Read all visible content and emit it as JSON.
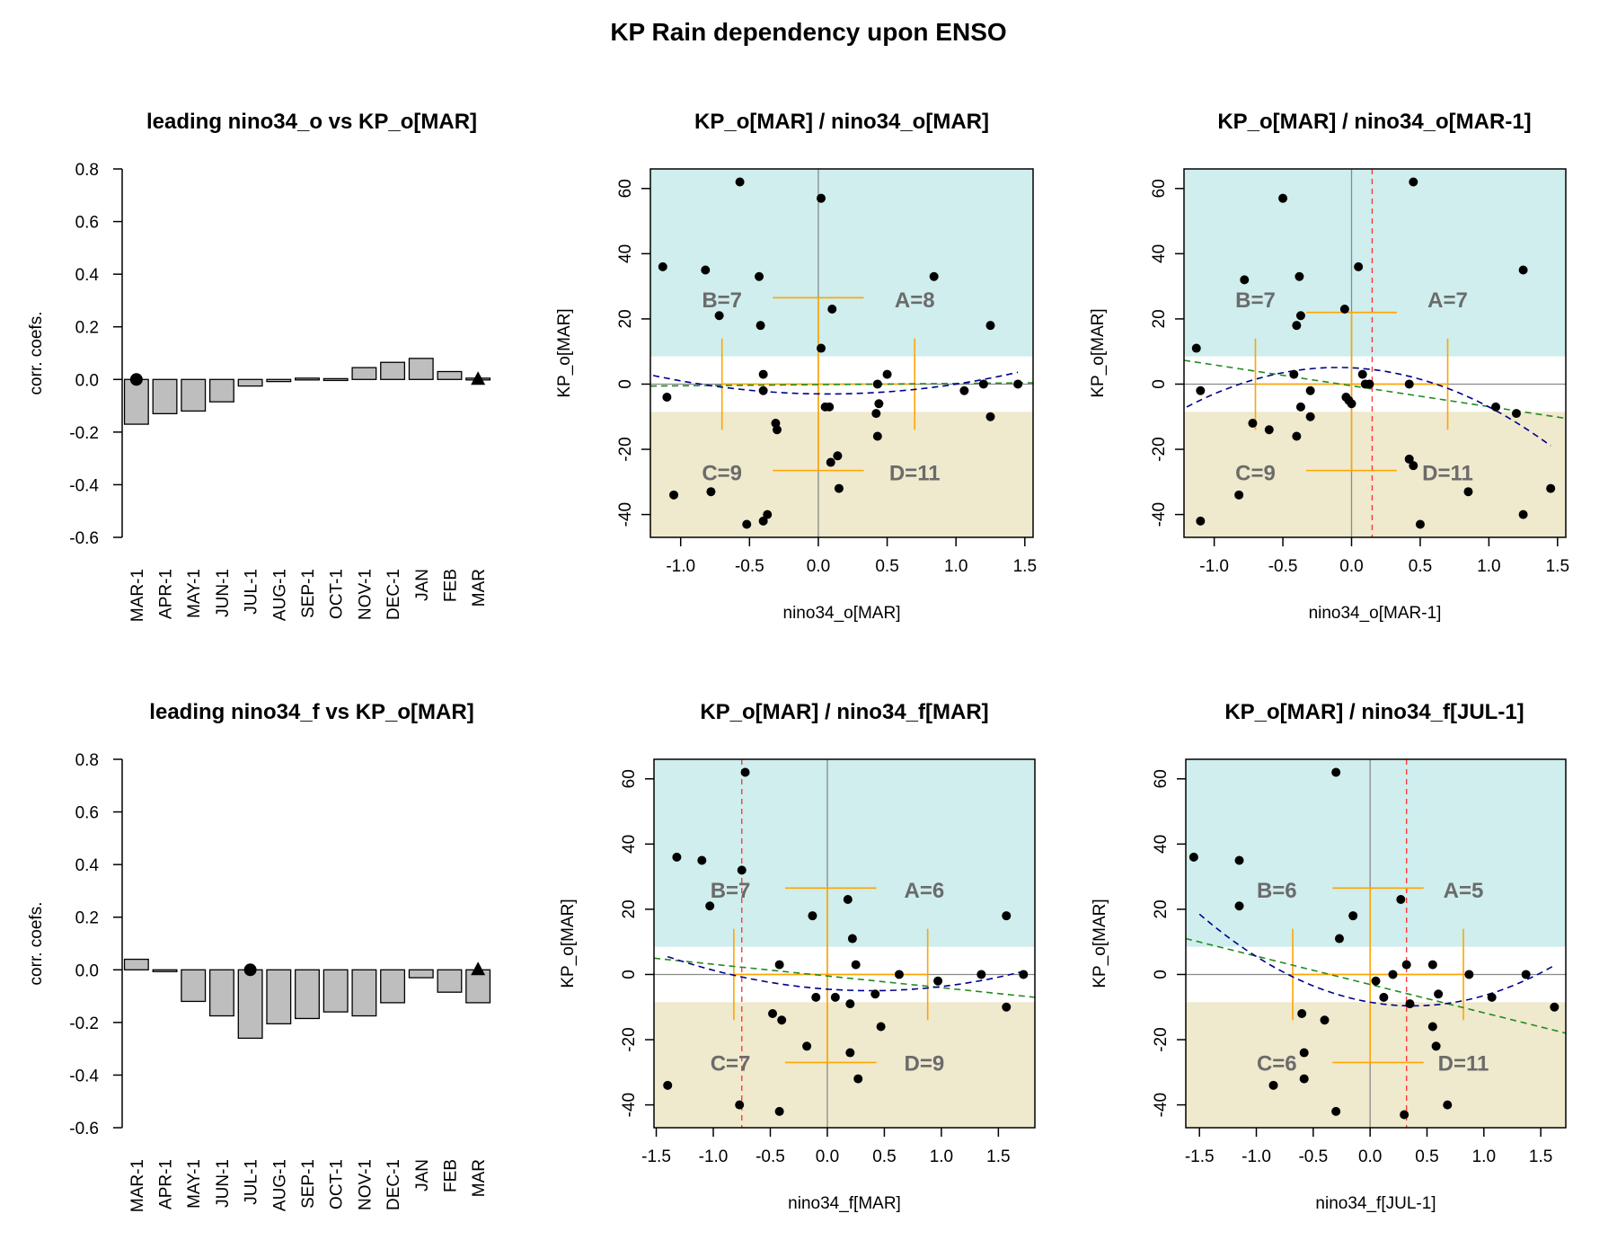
{
  "figure": {
    "title": "KP Rain dependency upon ENSO"
  },
  "colors": {
    "wet_band": "#cfeeed",
    "dry_band": "#efe9cd",
    "bar_fill": "#bebebe",
    "quadrant_lines": "#ffa500",
    "quadratic_fit": "#00008b",
    "linear_fit": "#228b22",
    "threshold_line": "#ff3030",
    "quadrant_text": "#6b6b6b"
  },
  "chart_data": [
    {
      "id": "bar1",
      "type": "bar",
      "title": "leading nino34_o vs KP_o[MAR]",
      "ylabel": "corr. coefs.",
      "xlabel": "",
      "ylim": [
        -0.6,
        0.8
      ],
      "yticks": [
        "-0.6",
        "-0.4",
        "-0.2",
        "0.0",
        "0.2",
        "0.4",
        "0.6",
        "0.8"
      ],
      "yticks_values": [
        -0.6,
        -0.4,
        -0.2,
        0.0,
        0.2,
        0.4,
        0.6,
        0.8
      ],
      "categories": [
        "MAR-1",
        "APR-1",
        "MAY-1",
        "JUN-1",
        "JUL-1",
        "AUG-1",
        "SEP-1",
        "OCT-1",
        "NOV-1",
        "DEC-1",
        "JAN",
        "FEB",
        "MAR"
      ],
      "values": [
        -0.17,
        -0.13,
        -0.12,
        -0.085,
        -0.025,
        -0.008,
        0.005,
        0.003,
        0.045,
        0.065,
        0.08,
        0.03,
        0.005
      ],
      "marker_circle_index": 0,
      "marker_triangle_index": 12
    },
    {
      "id": "sc1",
      "type": "scatter",
      "title": "KP_o[MAR] / nino34_o[MAR]",
      "xlabel": "nino34_o[MAR]",
      "ylabel": "KP_o[MAR]",
      "xlim": [
        -1.22,
        1.56
      ],
      "ylim": [
        -47,
        66
      ],
      "xticks": [
        "-1.0",
        "-0.5",
        "0.0",
        "0.5",
        "1.0",
        "1.5"
      ],
      "xticks_values": [
        -1,
        -0.5,
        0,
        0.5,
        1,
        1.5
      ],
      "yticks": [
        "-40",
        "-20",
        "0",
        "20",
        "40",
        "60"
      ],
      "yticks_values": [
        -40,
        -20,
        0,
        20,
        40,
        60
      ],
      "wet_threshold": 8.5,
      "dry_threshold": -8.5,
      "x_center": 0.0,
      "x_threshold": null,
      "quad_x": [
        -0.7,
        0.7
      ],
      "quad_y": [
        -14,
        14
      ],
      "quad_cross_x": [
        -0.33,
        0.33
      ],
      "quad_cross_y": [
        26.5,
        -26.5
      ],
      "quadrant_counts": {
        "A": "A=8",
        "B": "B=7",
        "C": "C=9",
        "D": "D=11"
      },
      "quad_label_x": {
        "A": 0.7,
        "B": -0.7,
        "C": -0.7,
        "D": 0.7
      },
      "quad_label_y": {
        "top": 26,
        "bottom": -27
      },
      "linear_fit": [
        [
          -1.22,
          -0.6
        ],
        [
          1.56,
          0.4
        ]
      ],
      "quadratic_fit": {
        "a": 3.5,
        "b": -0.5,
        "c": -3,
        "range": [
          -1.2,
          1.45
        ]
      },
      "points": [
        [
          -1.13,
          36
        ],
        [
          -1.1,
          -4
        ],
        [
          -1.05,
          -34
        ],
        [
          -0.82,
          35
        ],
        [
          -0.78,
          -33
        ],
        [
          -0.72,
          21
        ],
        [
          -0.57,
          62
        ],
        [
          -0.52,
          -43
        ],
        [
          -0.43,
          33
        ],
        [
          -0.42,
          18
        ],
        [
          -0.4,
          3
        ],
        [
          -0.4,
          -2
        ],
        [
          -0.4,
          -42
        ],
        [
          -0.37,
          -40
        ],
        [
          -0.31,
          -12
        ],
        [
          -0.3,
          -14
        ],
        [
          0.02,
          57
        ],
        [
          0.02,
          11
        ],
        [
          0.05,
          -7
        ],
        [
          0.08,
          -7
        ],
        [
          0.09,
          -24
        ],
        [
          0.1,
          23
        ],
        [
          0.14,
          -22
        ],
        [
          0.15,
          -32
        ],
        [
          0.42,
          -9
        ],
        [
          0.43,
          0
        ],
        [
          0.43,
          -16
        ],
        [
          0.44,
          -6
        ],
        [
          0.5,
          3
        ],
        [
          0.84,
          33
        ],
        [
          1.06,
          -2
        ],
        [
          1.2,
          0
        ],
        [
          1.25,
          18
        ],
        [
          1.25,
          -10
        ],
        [
          1.45,
          0
        ]
      ]
    },
    {
      "id": "sc2",
      "type": "scatter",
      "title": "KP_o[MAR] / nino34_o[MAR-1]",
      "xlabel": "nino34_o[MAR-1]",
      "ylabel": "KP_o[MAR]",
      "xlim": [
        -1.22,
        1.56
      ],
      "ylim": [
        -47,
        66
      ],
      "xticks": [
        "-1.0",
        "-0.5",
        "0.0",
        "0.5",
        "1.0",
        "1.5"
      ],
      "xticks_values": [
        -1,
        -0.5,
        0,
        0.5,
        1,
        1.5
      ],
      "yticks": [
        "-40",
        "-20",
        "0",
        "20",
        "40",
        "60"
      ],
      "yticks_values": [
        -40,
        -20,
        0,
        20,
        40,
        60
      ],
      "wet_threshold": 8.5,
      "dry_threshold": -8.5,
      "x_center": 0.0,
      "x_threshold": 0.15,
      "quad_x": [
        -0.7,
        0.7
      ],
      "quad_y": [
        -14,
        14
      ],
      "quad_cross_x": [
        -0.33,
        0.33
      ],
      "quad_cross_y": [
        22,
        -26.5
      ],
      "quadrant_counts": {
        "A": "A=7",
        "B": "B=7",
        "C": "C=9",
        "D": "D=11"
      },
      "quad_label_x": {
        "A": 0.7,
        "B": -0.7,
        "C": -0.7,
        "D": 0.7
      },
      "quad_label_y": {
        "top": 26,
        "bottom": -27
      },
      "linear_fit": [
        [
          -1.22,
          7.3
        ],
        [
          1.56,
          -10.5
        ]
      ],
      "quadratic_fit": {
        "a": -10,
        "b": -2,
        "c": 5,
        "range": [
          -1.2,
          1.45
        ]
      },
      "points": [
        [
          -1.13,
          11
        ],
        [
          -1.1,
          -2
        ],
        [
          -1.1,
          -42
        ],
        [
          -0.82,
          -34
        ],
        [
          -0.78,
          32
        ],
        [
          -0.72,
          -12
        ],
        [
          -0.6,
          -14
        ],
        [
          -0.5,
          57
        ],
        [
          -0.42,
          3
        ],
        [
          -0.4,
          -16
        ],
        [
          -0.4,
          18
        ],
        [
          -0.38,
          33
        ],
        [
          -0.37,
          21
        ],
        [
          -0.37,
          -7
        ],
        [
          -0.3,
          -10
        ],
        [
          -0.3,
          -2
        ],
        [
          -0.05,
          23
        ],
        [
          -0.04,
          -4
        ],
        [
          -0.02,
          -5
        ],
        [
          0.0,
          -6
        ],
        [
          0.05,
          36
        ],
        [
          0.08,
          3
        ],
        [
          0.1,
          0
        ],
        [
          0.13,
          0
        ],
        [
          0.42,
          0
        ],
        [
          0.42,
          -23
        ],
        [
          0.45,
          -25
        ],
        [
          0.45,
          62
        ],
        [
          0.5,
          -43
        ],
        [
          0.85,
          -33
        ],
        [
          1.05,
          -7
        ],
        [
          1.2,
          -9
        ],
        [
          1.25,
          35
        ],
        [
          1.25,
          -40
        ],
        [
          1.45,
          -32
        ]
      ]
    },
    {
      "id": "bar2",
      "type": "bar",
      "title": "leading nino34_f vs KP_o[MAR]",
      "ylabel": "corr. coefs.",
      "xlabel": "",
      "ylim": [
        -0.6,
        0.8
      ],
      "yticks": [
        "-0.6",
        "-0.4",
        "-0.2",
        "0.0",
        "0.2",
        "0.4",
        "0.6",
        "0.8"
      ],
      "yticks_values": [
        -0.6,
        -0.4,
        -0.2,
        0.0,
        0.2,
        0.4,
        0.6,
        0.8
      ],
      "categories": [
        "MAR-1",
        "APR-1",
        "MAY-1",
        "JUN-1",
        "JUL-1",
        "AUG-1",
        "SEP-1",
        "OCT-1",
        "NOV-1",
        "DEC-1",
        "JAN",
        "FEB",
        "MAR"
      ],
      "values": [
        0.04,
        -0.005,
        -0.12,
        -0.175,
        -0.26,
        -0.205,
        -0.185,
        -0.16,
        -0.175,
        -0.125,
        -0.03,
        -0.085,
        -0.125
      ],
      "marker_circle_index": 4,
      "marker_triangle_index": 12
    },
    {
      "id": "sc3",
      "type": "scatter",
      "title": "KP_o[MAR] / nino34_f[MAR]",
      "xlabel": "nino34_f[MAR]",
      "ylabel": "KP_o[MAR]",
      "xlim": [
        -1.52,
        1.82
      ],
      "ylim": [
        -47,
        66
      ],
      "xticks": [
        "-1.5",
        "-1.0",
        "-0.5",
        "0.0",
        "0.5",
        "1.0",
        "1.5"
      ],
      "xticks_values": [
        -1.5,
        -1,
        -0.5,
        0,
        0.5,
        1,
        1.5
      ],
      "yticks": [
        "-40",
        "-20",
        "0",
        "20",
        "40",
        "60"
      ],
      "yticks_values": [
        -40,
        -20,
        0,
        20,
        40,
        60
      ],
      "wet_threshold": 8.5,
      "dry_threshold": -8.5,
      "x_center": 0.0,
      "x_threshold": -0.75,
      "quad_x": [
        -0.82,
        0.88
      ],
      "quad_y": [
        -14,
        14
      ],
      "quad_cross_x": [
        -0.37,
        0.43
      ],
      "quad_cross_y": [
        26.5,
        -27
      ],
      "quadrant_counts": {
        "A": "A=6",
        "B": "B=7",
        "C": "C=7",
        "D": "D=9"
      },
      "quad_label_x": {
        "A": 0.85,
        "B": -0.85,
        "C": -0.85,
        "D": 0.85
      },
      "quad_label_y": {
        "top": 26,
        "bottom": -27
      },
      "linear_fit": [
        [
          -1.52,
          5
        ],
        [
          1.82,
          -7
        ]
      ],
      "quadratic_fit": {
        "a": 3.3,
        "b": -2.5,
        "c": -4.5,
        "range": [
          -1.4,
          1.75
        ]
      },
      "points": [
        [
          -1.4,
          -34
        ],
        [
          -1.32,
          36
        ],
        [
          -1.1,
          35
        ],
        [
          -1.03,
          21
        ],
        [
          -0.77,
          -40
        ],
        [
          -0.75,
          32
        ],
        [
          -0.72,
          62
        ],
        [
          -0.48,
          -12
        ],
        [
          -0.42,
          3
        ],
        [
          -0.42,
          -42
        ],
        [
          -0.4,
          -14
        ],
        [
          -0.18,
          -22
        ],
        [
          -0.13,
          18
        ],
        [
          -0.1,
          -7
        ],
        [
          0.07,
          -7
        ],
        [
          0.18,
          23
        ],
        [
          0.2,
          -9
        ],
        [
          0.2,
          -24
        ],
        [
          0.22,
          11
        ],
        [
          0.25,
          3
        ],
        [
          0.27,
          -32
        ],
        [
          0.42,
          -6
        ],
        [
          0.47,
          -16
        ],
        [
          0.63,
          0
        ],
        [
          0.97,
          -2
        ],
        [
          1.35,
          0
        ],
        [
          1.57,
          18
        ],
        [
          1.57,
          -10
        ],
        [
          1.72,
          0
        ]
      ]
    },
    {
      "id": "sc4",
      "type": "scatter",
      "title": "KP_o[MAR] / nino34_f[JUL-1]",
      "xlabel": "nino34_f[JUL-1]",
      "ylabel": "KP_o[MAR]",
      "xlim": [
        -1.62,
        1.72
      ],
      "ylim": [
        -47,
        66
      ],
      "xticks": [
        "-1.5",
        "-1.0",
        "-0.5",
        "0.0",
        "0.5",
        "1.0",
        "1.5"
      ],
      "xticks_values": [
        -1.5,
        -1,
        -0.5,
        0,
        0.5,
        1,
        1.5
      ],
      "yticks": [
        "-40",
        "-20",
        "0",
        "20",
        "40",
        "60"
      ],
      "yticks_values": [
        -40,
        -20,
        0,
        20,
        40,
        60
      ],
      "wet_threshold": 8.5,
      "dry_threshold": -8.5,
      "x_center": 0.0,
      "x_threshold": 0.32,
      "quad_x": [
        -0.68,
        0.82
      ],
      "quad_y": [
        -14,
        14
      ],
      "quad_cross_x": [
        -0.33,
        0.47
      ],
      "quad_cross_y": [
        26.5,
        -27
      ],
      "quadrant_counts": {
        "A": "A=5",
        "B": "B=6",
        "C": "C=6",
        "D": "D=11"
      },
      "quad_label_x": {
        "A": 0.82,
        "B": -0.82,
        "C": -0.82,
        "D": 0.82
      },
      "quad_label_y": {
        "top": 26,
        "bottom": -27
      },
      "linear_fit": [
        [
          -1.62,
          11
        ],
        [
          1.72,
          -18
        ]
      ],
      "quadratic_fit": {
        "a": 8,
        "b": -6,
        "c": -8.5,
        "range": [
          -1.5,
          1.62
        ]
      },
      "points": [
        [
          -1.55,
          36
        ],
        [
          -1.15,
          35
        ],
        [
          -1.15,
          21
        ],
        [
          -0.85,
          -34
        ],
        [
          -0.6,
          -12
        ],
        [
          -0.58,
          -24
        ],
        [
          -0.58,
          -32
        ],
        [
          -0.4,
          -14
        ],
        [
          -0.3,
          -42
        ],
        [
          -0.3,
          62
        ],
        [
          -0.27,
          11
        ],
        [
          -0.15,
          18
        ],
        [
          0.05,
          -2
        ],
        [
          0.12,
          -7
        ],
        [
          0.2,
          0
        ],
        [
          0.27,
          23
        ],
        [
          0.3,
          -43
        ],
        [
          0.32,
          3
        ],
        [
          0.35,
          -9
        ],
        [
          0.55,
          3
        ],
        [
          0.55,
          -16
        ],
        [
          0.58,
          -22
        ],
        [
          0.6,
          -6
        ],
        [
          0.68,
          -40
        ],
        [
          0.87,
          0
        ],
        [
          1.07,
          -7
        ],
        [
          1.37,
          0
        ],
        [
          1.62,
          -10
        ]
      ]
    }
  ]
}
